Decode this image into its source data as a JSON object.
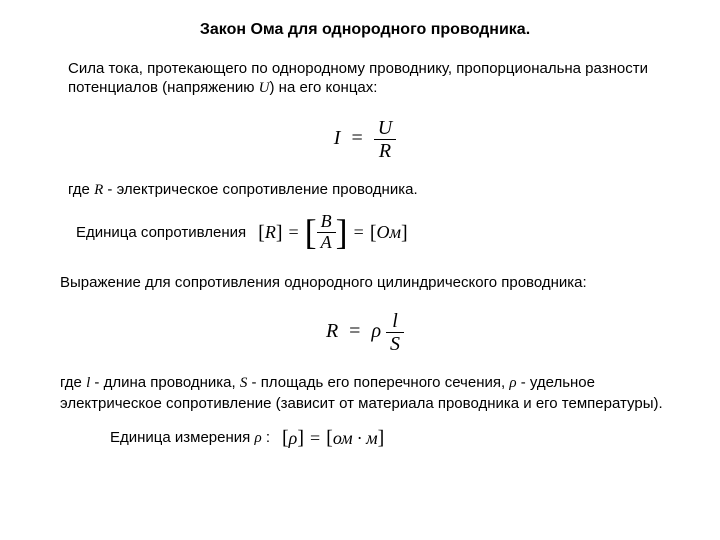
{
  "title": "Закон Ома для однородного проводника.",
  "p1a": "Сила тока, протекающего по однородному проводнику, пропорциональна разности потенциалов (напряжению ",
  "p1_u": "U",
  "p1b": ") на его концах:",
  "formula1": {
    "lhs": "I",
    "num": "U",
    "den": "R"
  },
  "p2a": "где ",
  "p2_r": "R",
  "p2b": " - электрическое сопротивление проводника.",
  "unit_label": "Единица сопротивления",
  "unit_eq": {
    "left": "R",
    "frac_num": "В",
    "frac_den": "А",
    "right": "Ом"
  },
  "p3": "Выражение для сопротивления однородного цилиндрического проводника:",
  "formula2": {
    "lhs": "R",
    "rho": "ρ",
    "num": "l",
    "den": "S"
  },
  "p4a": "где ",
  "p4_l": "l",
  "p4b": " - длина проводника, ",
  "p4_s": "S",
  "p4c": " - площадь его поперечного сечения, ",
  "p4_rho": "ρ",
  "p4d": " - удельное электрическое сопротивление (зависит от материала проводника и его температуры).",
  "rho_label_a": "Единица измерения ",
  "rho_label_sym": "ρ",
  "rho_label_b": " :",
  "rho_eq": {
    "left": "ρ",
    "right": "ом · м"
  },
  "colors": {
    "text": "#000000",
    "bg": "#ffffff"
  }
}
